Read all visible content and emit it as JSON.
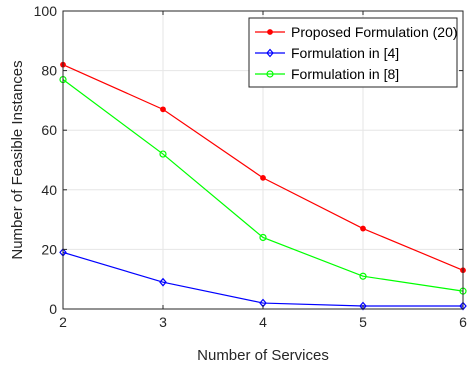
{
  "chart_data": {
    "type": "line",
    "xlabel": "Number of Services",
    "ylabel": "Number of Feasible Instances",
    "x": [
      2,
      3,
      4,
      5,
      6
    ],
    "xlim": [
      2,
      6
    ],
    "ylim": [
      0,
      100
    ],
    "xticks": [
      2,
      3,
      4,
      5,
      6
    ],
    "yticks": [
      0,
      20,
      40,
      60,
      80,
      100
    ],
    "grid": true,
    "legend_position": "top-right",
    "series": [
      {
        "name": "Proposed Formulation (20)",
        "values": [
          82,
          67,
          44,
          27,
          13
        ],
        "color": "#ff0000",
        "marker": "dot"
      },
      {
        "name": "Formulation in [4]",
        "values": [
          19,
          9,
          2,
          1,
          1
        ],
        "color": "#0000ff",
        "marker": "diamond"
      },
      {
        "name": "Formulation in [8]",
        "values": [
          77,
          52,
          24,
          11,
          6
        ],
        "color": "#00ff00",
        "marker": "circle"
      }
    ]
  }
}
